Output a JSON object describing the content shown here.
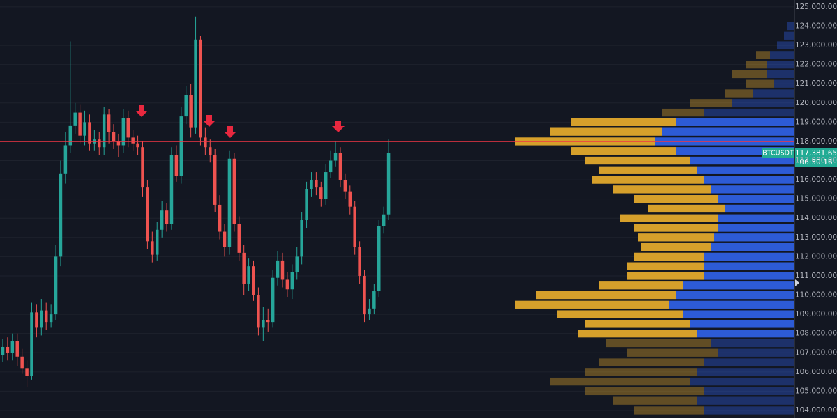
{
  "chart_data": {
    "type": "candlestick",
    "categories": [
      null,
      null,
      null,
      null,
      null,
      null,
      null,
      null,
      null,
      null,
      null,
      null,
      null,
      null,
      null,
      null,
      null,
      null,
      null,
      null,
      null,
      null,
      null,
      null,
      null,
      null,
      null,
      null,
      null,
      null,
      null,
      null,
      null,
      null,
      null,
      null,
      null,
      null,
      null,
      null,
      null,
      null,
      null,
      null,
      null,
      null,
      null,
      null,
      null,
      null,
      null,
      null,
      null,
      null,
      null,
      null,
      null,
      null,
      null,
      null,
      null,
      null,
      null,
      null,
      null,
      null,
      null,
      null,
      null,
      null,
      null,
      null,
      null,
      null,
      null,
      null,
      null,
      null,
      null,
      null,
      null
    ],
    "open": [
      106900,
      107300,
      107000,
      107600,
      106800,
      106200,
      105800,
      109100,
      108300,
      109200,
      108600,
      109000,
      112000,
      116300,
      117800,
      118800,
      119500,
      118300,
      119000,
      117900,
      118100,
      117700,
      119400,
      118500,
      118000,
      117800,
      119200,
      118200,
      117900,
      117700,
      115600,
      112800,
      112100,
      113400,
      114400,
      113700,
      117300,
      116200,
      119300,
      120400,
      118700,
      123300,
      118200,
      117700,
      117300,
      114700,
      113300,
      112500,
      117100,
      113700,
      112200,
      110600,
      111500,
      110000,
      108300,
      108700,
      108600,
      110900,
      111800,
      110800,
      110300,
      111200,
      112000,
      113900,
      115500,
      116000,
      115600,
      115000,
      116400,
      117000,
      117400,
      116000,
      115400,
      114600,
      112500,
      111000,
      109000,
      109300,
      110200,
      113600,
      114200
    ],
    "high": [
      107700,
      107800,
      108000,
      108000,
      107200,
      106600,
      109600,
      109500,
      109800,
      109600,
      109500,
      112600,
      117000,
      118500,
      123200,
      120000,
      119900,
      119600,
      119400,
      118600,
      118500,
      119800,
      119700,
      118900,
      118400,
      119700,
      119600,
      118600,
      118300,
      118000,
      116000,
      113300,
      113800,
      114900,
      114800,
      117700,
      117800,
      119800,
      120900,
      121000,
      124500,
      123500,
      118700,
      118100,
      117600,
      115200,
      113700,
      117500,
      117400,
      114100,
      112600,
      111900,
      111800,
      110400,
      109400,
      109300,
      111300,
      112300,
      112200,
      111200,
      111600,
      112500,
      114300,
      115900,
      116400,
      116400,
      115900,
      116800,
      117500,
      118000,
      117700,
      116300,
      115700,
      114900,
      112800,
      111300,
      109800,
      110600,
      113900,
      114600,
      118100
    ],
    "low": [
      106500,
      106600,
      106600,
      106300,
      105900,
      105200,
      105600,
      107800,
      107900,
      108200,
      108300,
      108700,
      111500,
      115800,
      117400,
      118400,
      117900,
      117800,
      117500,
      117500,
      117300,
      117300,
      117900,
      117600,
      117200,
      117400,
      117700,
      117500,
      117300,
      115100,
      112400,
      111700,
      111800,
      113000,
      113300,
      113400,
      115900,
      115800,
      118900,
      118200,
      118400,
      117800,
      117300,
      116900,
      114300,
      112900,
      112000,
      112100,
      113300,
      111800,
      110000,
      110200,
      109700,
      107900,
      107600,
      108100,
      108300,
      110500,
      110400,
      109900,
      109800,
      110800,
      111600,
      113500,
      115100,
      115200,
      114600,
      114700,
      116100,
      116700,
      115600,
      115000,
      114200,
      112100,
      110600,
      108600,
      108700,
      109000,
      109900,
      113200,
      113900
    ],
    "close": [
      107300,
      107000,
      107600,
      106800,
      106200,
      105800,
      109100,
      108300,
      109200,
      108600,
      109000,
      112000,
      116300,
      117800,
      118800,
      119500,
      118300,
      119000,
      117900,
      118100,
      117700,
      119400,
      118500,
      118000,
      117800,
      119200,
      118200,
      117900,
      117700,
      115600,
      112800,
      112100,
      113400,
      114400,
      113700,
      117300,
      116200,
      119300,
      120400,
      118700,
      123300,
      118200,
      117700,
      117300,
      114700,
      113300,
      112500,
      117100,
      113700,
      112200,
      110600,
      111500,
      110000,
      108300,
      108700,
      108600,
      110900,
      111800,
      110800,
      110300,
      111200,
      112000,
      113900,
      115500,
      116000,
      115600,
      115000,
      116400,
      117000,
      117400,
      116000,
      115400,
      114600,
      112500,
      111000,
      109000,
      109300,
      110200,
      113600,
      114200,
      117381.65
    ],
    "up_color": "#26a69a",
    "down_color": "#ef5350",
    "ylim": [
      103600,
      125360
    ],
    "yticks": [
      {
        "value": 104000,
        "label": "104,000.00"
      },
      {
        "value": 105000,
        "label": "105,000.00"
      },
      {
        "value": 106000,
        "label": "106,000.00"
      },
      {
        "value": 107000,
        "label": "107,000.00"
      },
      {
        "value": 108000,
        "label": "108,000.00"
      },
      {
        "value": 109000,
        "label": "109,000.00"
      },
      {
        "value": 110000,
        "label": "110,000.00"
      },
      {
        "value": 111000,
        "label": "111,000.00"
      },
      {
        "value": 112000,
        "label": "112,000.00"
      },
      {
        "value": 113000,
        "label": "113,000.00"
      },
      {
        "value": 114000,
        "label": "114,000.00"
      },
      {
        "value": 115000,
        "label": "115,000.00"
      },
      {
        "value": 116000,
        "label": "116,000.00"
      },
      {
        "value": 117000,
        "label": "117,000.00"
      },
      {
        "value": 118000,
        "label": "118,000.00"
      },
      {
        "value": 119000,
        "label": "119,000.00"
      },
      {
        "value": 120000,
        "label": "120,000.00"
      },
      {
        "value": 121000,
        "label": "121,000.00"
      },
      {
        "value": 122000,
        "label": "122,000.00"
      },
      {
        "value": 123000,
        "label": "123,000.00"
      },
      {
        "value": 124000,
        "label": "124,000.00"
      },
      {
        "value": 125000,
        "label": "125,000.00"
      }
    ],
    "grid": true,
    "hline": {
      "value": 118000,
      "color": "#f23645"
    },
    "price_tag": {
      "symbol": "BTCUSDT",
      "value": 117381.65,
      "label": "117,381.65",
      "countdown": "06:30:16",
      "color": "#22ab94"
    },
    "volume_profile": {
      "levels": [
        104000,
        104500,
        105000,
        105500,
        106000,
        106500,
        107000,
        107500,
        108000,
        108500,
        109000,
        109500,
        110000,
        110500,
        111000,
        111500,
        112000,
        112500,
        113000,
        113500,
        114000,
        114500,
        115000,
        115500,
        116000,
        116500,
        117000,
        117500,
        118000,
        118500,
        119000,
        119500,
        120000,
        120500,
        121000,
        121500,
        122000,
        122500,
        123000,
        123500,
        124000
      ],
      "up": [
        130,
        140,
        130,
        150,
        140,
        130,
        110,
        120,
        140,
        150,
        160,
        180,
        170,
        160,
        130,
        130,
        130,
        120,
        115,
        110,
        110,
        100,
        110,
        120,
        130,
        140,
        150,
        170,
        200,
        190,
        170,
        130,
        90,
        60,
        30,
        40,
        40,
        35,
        25,
        15,
        10
      ],
      "down": [
        100,
        120,
        170,
        200,
        160,
        150,
        130,
        150,
        170,
        150,
        180,
        220,
        200,
        120,
        110,
        110,
        100,
        100,
        110,
        120,
        140,
        110,
        120,
        140,
        160,
        140,
        150,
        150,
        200,
        160,
        150,
        60,
        60,
        40,
        40,
        50,
        30,
        20,
        0,
        0,
        0
      ],
      "up_color": "#2d5bd6",
      "down_color": "#d6a02b",
      "value_area": [
        107750,
        119250
      ]
    }
  }
}
